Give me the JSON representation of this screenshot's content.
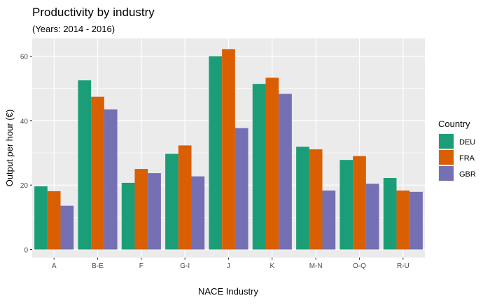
{
  "chart_data": {
    "type": "bar",
    "title": "Productivity by industry",
    "subtitle": "(Years: 2014 - 2016)",
    "xlabel": "NACE Industry",
    "ylabel": "Output per hour (€)",
    "categories": [
      "A",
      "B-E",
      "F",
      "G-I",
      "J",
      "K",
      "M-N",
      "O-Q",
      "R-U"
    ],
    "ylim": [
      0,
      65
    ],
    "yticks": [
      0,
      20,
      40,
      60
    ],
    "grid": true,
    "legend_position": "right",
    "legend_title": "Country",
    "series": [
      {
        "name": "DEU",
        "color": "#1b9e77",
        "values": [
          19.6,
          52.5,
          20.7,
          29.7,
          60.0,
          51.4,
          31.9,
          27.8,
          22.2
        ]
      },
      {
        "name": "FRA",
        "color": "#d95f02",
        "values": [
          18.1,
          47.4,
          25.0,
          32.3,
          62.2,
          53.3,
          31.1,
          29.0,
          18.3
        ]
      },
      {
        "name": "GBR",
        "color": "#7570b3",
        "values": [
          13.6,
          43.5,
          23.7,
          22.7,
          37.7,
          48.3,
          18.3,
          20.4,
          17.9
        ]
      }
    ]
  }
}
